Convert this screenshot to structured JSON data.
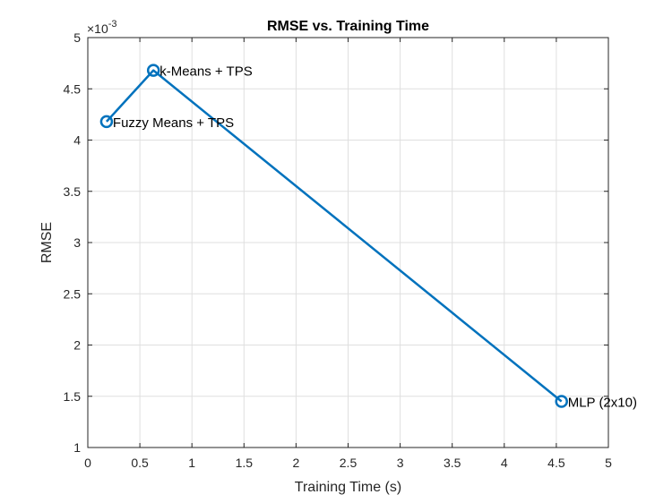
{
  "chart_data": {
    "type": "line",
    "title": "RMSE vs. Training Time",
    "xlabel": "Training Time (s)",
    "ylabel": "RMSE",
    "y_multiplier_base": "×10",
    "y_multiplier_exponent": "-3",
    "xlim": [
      0,
      5
    ],
    "ylim": [
      1,
      5
    ],
    "xticks": [
      0,
      0.5,
      1,
      1.5,
      2,
      2.5,
      3,
      3.5,
      4,
      4.5,
      5
    ],
    "xtick_labels": [
      "0",
      "0.5",
      "1",
      "1.5",
      "2",
      "2.5",
      "3",
      "3.5",
      "4",
      "4.5",
      "5"
    ],
    "yticks": [
      1,
      1.5,
      2,
      2.5,
      3,
      3.5,
      4,
      4.5,
      5
    ],
    "ytick_labels": [
      "1",
      "1.5",
      "2",
      "2.5",
      "3",
      "3.5",
      "4",
      "4.5",
      "5"
    ],
    "grid": true,
    "marker": "circle",
    "series": [
      {
        "color": "#0072BD",
        "points": [
          {
            "x": 0.18,
            "y": 4.18,
            "label": "Fuzzy Means + TPS"
          },
          {
            "x": 0.63,
            "y": 4.68,
            "label": "k-Means + TPS"
          },
          {
            "x": 4.55,
            "y": 1.45,
            "label": "MLP (2x10)"
          }
        ]
      }
    ]
  }
}
